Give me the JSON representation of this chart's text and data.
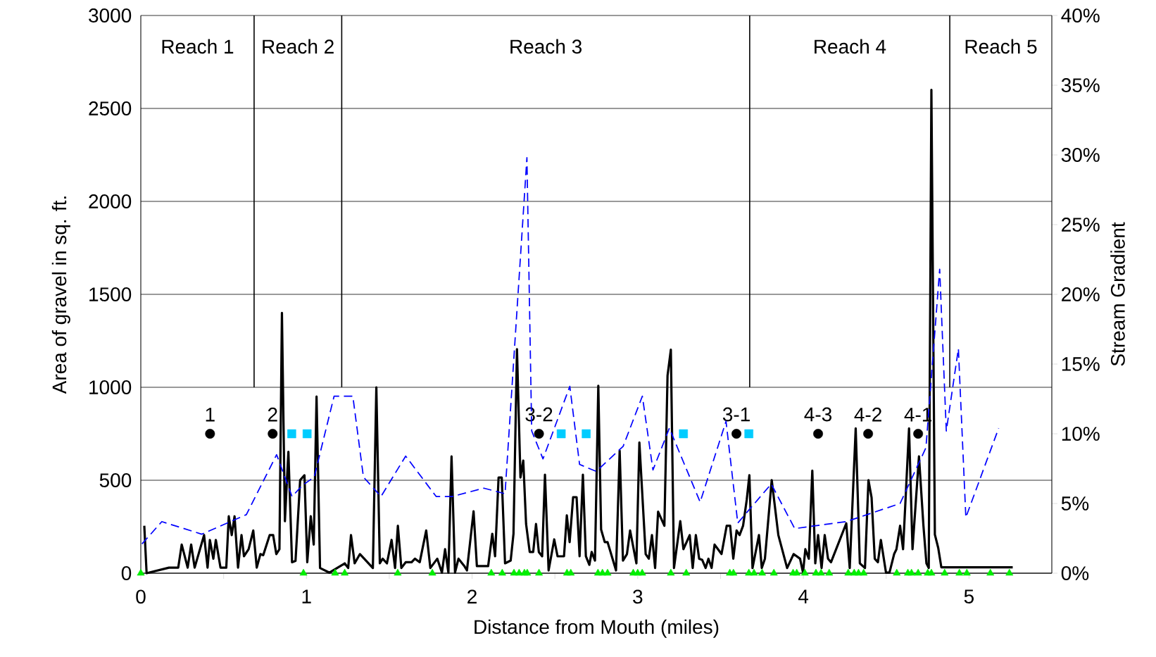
{
  "chart_data": {
    "type": "line",
    "xlabel": "Distance from Mouth (miles)",
    "ylabel": "Area of gravel in sq. ft.",
    "y2label": "Stream Gradient",
    "xlim": [
      0,
      5.5
    ],
    "xticks": [
      0,
      {
        "value": 0.5,
        "label": null
      },
      1,
      {
        "value": 1.5,
        "label": null
      },
      2,
      {
        "value": 2.5,
        "label": null
      },
      3,
      {
        "value": 3.5,
        "label": null
      },
      4,
      {
        "value": 4.5,
        "label": null
      },
      5
    ],
    "ylim": [
      0,
      3000
    ],
    "yticks": [
      0,
      500,
      1000,
      1500,
      2000,
      2500,
      3000
    ],
    "y2lim": [
      0,
      40
    ],
    "y2ticks": [
      {
        "value": 0,
        "label": "0%"
      },
      {
        "value": 5,
        "label": "5%"
      },
      {
        "value": 10,
        "label": "10%"
      },
      {
        "value": 15,
        "label": "15%"
      },
      {
        "value": 20,
        "label": "20%"
      },
      {
        "value": 25,
        "label": "25%"
      },
      {
        "value": 30,
        "label": "30%"
      },
      {
        "value": 35,
        "label": "35%"
      },
      {
        "value": 40,
        "label": "40%"
      }
    ],
    "grid": "y",
    "series": [
      {
        "color": "#000000",
        "x": [
          0.021,
          0.035,
          0.17,
          0.226,
          0.247,
          0.283,
          0.304,
          0.325,
          0.382,
          0.403,
          0.417,
          0.438,
          0.453,
          0.481,
          0.516,
          0.531,
          0.549,
          0.566,
          0.587,
          0.608,
          0.623,
          0.651,
          0.679,
          0.7,
          0.722,
          0.739,
          0.778,
          0.799,
          0.818,
          0.837,
          0.852,
          0.87,
          0.891,
          0.913,
          0.934,
          0.962,
          0.988,
          1.005,
          1.026,
          1.044,
          1.061,
          1.082,
          1.139,
          1.231,
          1.252,
          1.269,
          1.291,
          1.323,
          1.401,
          1.422,
          1.443,
          1.46,
          1.486,
          1.514,
          1.535,
          1.552,
          1.573,
          1.599,
          1.635,
          1.655,
          1.684,
          1.723,
          1.748,
          1.79,
          1.818,
          1.837,
          1.857,
          1.876,
          1.897,
          1.918,
          1.952,
          1.969,
          2.009,
          2.029,
          2.097,
          2.122,
          2.139,
          2.16,
          2.179,
          2.199,
          2.233,
          2.25,
          2.271,
          2.292,
          2.309,
          2.326,
          2.348,
          2.369,
          2.386,
          2.403,
          2.423,
          2.44,
          2.462,
          2.496,
          2.516,
          2.555,
          2.572,
          2.589,
          2.61,
          2.631,
          2.649,
          2.669,
          2.687,
          2.708,
          2.722,
          2.742,
          2.762,
          2.779,
          2.801,
          2.818,
          2.869,
          2.891,
          2.911,
          2.935,
          2.954,
          2.992,
          3.01,
          3.048,
          3.067,
          3.086,
          3.105,
          3.123,
          3.161,
          3.18,
          3.2,
          3.219,
          3.257,
          3.276,
          3.314,
          3.332,
          3.351,
          3.371,
          3.389,
          3.41,
          3.427,
          3.446,
          3.464,
          3.506,
          3.537,
          3.558,
          3.577,
          3.597,
          3.615,
          3.636,
          3.658,
          3.674,
          3.693,
          3.732,
          3.749,
          3.768,
          3.809,
          3.849,
          3.902,
          3.941,
          3.98,
          3.998,
          4.012,
          4.033,
          4.054,
          4.072,
          4.089,
          4.11,
          4.129,
          4.149,
          4.167,
          4.259,
          4.28,
          4.316,
          4.341,
          4.372,
          4.393,
          4.412,
          4.431,
          4.45,
          4.468,
          4.499,
          4.52,
          4.548,
          4.562,
          4.584,
          4.602,
          4.619,
          4.638,
          4.659,
          4.698,
          4.725,
          4.743,
          4.757,
          4.773,
          4.794,
          4.814,
          4.833,
          5.264
        ],
        "values": [
          255,
          0,
          30,
          30,
          154,
          30,
          154,
          30,
          205,
          30,
          179,
          78,
          179,
          30,
          30,
          306,
          205,
          306,
          30,
          205,
          91,
          129,
          230,
          30,
          103,
          97,
          205,
          205,
          103,
          129,
          1400,
          280,
          653,
          59,
          66,
          501,
          527,
          59,
          306,
          154,
          950,
          28,
          3,
          53,
          28,
          205,
          53,
          103,
          28,
          1000,
          53,
          78,
          53,
          179,
          28,
          255,
          28,
          59,
          59,
          78,
          59,
          230,
          28,
          78,
          3,
          129,
          3,
          628,
          3,
          78,
          40,
          15,
          333,
          38,
          38,
          212,
          91,
          515,
          515,
          53,
          68,
          212,
          1205,
          515,
          606,
          265,
          114,
          114,
          265,
          114,
          91,
          530,
          15,
          182,
          91,
          91,
          311,
          167,
          409,
          409,
          91,
          530,
          91,
          45,
          114,
          68,
          1008,
          235,
          167,
          167,
          15,
          659,
          68,
          103,
          230,
          53,
          703,
          103,
          78,
          205,
          28,
          331,
          255,
          1063,
          1202,
          28,
          280,
          129,
          205,
          28,
          205,
          78,
          72,
          28,
          78,
          28,
          154,
          103,
          255,
          255,
          78,
          230,
          205,
          255,
          394,
          527,
          28,
          205,
          28,
          78,
          501,
          205,
          28,
          103,
          78,
          3,
          129,
          78,
          552,
          53,
          205,
          28,
          205,
          78,
          59,
          268,
          28,
          779,
          53,
          28,
          501,
          406,
          78,
          59,
          179,
          3,
          3,
          103,
          129,
          255,
          129,
          432,
          779,
          129,
          628,
          255,
          53,
          28,
          2600,
          208,
          137,
          32,
          32
        ]
      },
      {
        "color": "#0000ff",
        "axis": "y2",
        "line_style": "dashed",
        "x": [
          0.007,
          0.127,
          0.368,
          0.637,
          0.82,
          0.913,
          0.976,
          1.047,
          1.167,
          1.28,
          1.344,
          1.45,
          1.599,
          1.783,
          1.88,
          2.071,
          2.199,
          2.331,
          2.36,
          2.428,
          2.59,
          2.649,
          2.75,
          2.912,
          3.028,
          3.092,
          3.191,
          3.377,
          3.533,
          3.604,
          3.806,
          3.948,
          4.259,
          4.584,
          4.74,
          4.823,
          4.863,
          4.936,
          4.981,
          5.179
        ],
        "values": [
          2.1,
          3.7,
          2.8,
          4.2,
          8.5,
          5.5,
          6.3,
          6.9,
          12.7,
          12.7,
          6.9,
          5.5,
          8.4,
          5.5,
          5.5,
          6.1,
          5.7,
          29.8,
          10.2,
          8.2,
          13.4,
          7.8,
          7.3,
          9.1,
          12.7,
          7.4,
          10.4,
          5.1,
          10.9,
          3.6,
          6.4,
          3.2,
          3.7,
          5.0,
          9.0,
          21.8,
          10.2,
          16.1,
          4.0,
          10.4
        ]
      },
      {
        "type": "scatter",
        "marker": "circle",
        "color": "#000000",
        "x": [
          0.418,
          0.796,
          2.404,
          3.596,
          4.089,
          4.391,
          4.693
        ],
        "values": [
          750,
          750,
          750,
          750,
          750,
          750,
          750
        ]
      },
      {
        "type": "scatter",
        "marker": "square",
        "color": "#00ccff",
        "x": [
          0.911,
          1.004,
          2.538,
          2.689,
          3.276,
          3.671
        ],
        "values": [
          750,
          750,
          750,
          750,
          750,
          750
        ]
      },
      {
        "type": "scatter",
        "marker": "triangle",
        "color": "#00ee00",
        "x": [
          0,
          0.982,
          1.173,
          1.231,
          1.551,
          1.76,
          2.116,
          2.182,
          2.253,
          2.284,
          2.316,
          2.333,
          2.404,
          2.573,
          2.596,
          2.76,
          2.787,
          2.818,
          2.973,
          3.0,
          3.027,
          3.2,
          3.293,
          3.556,
          3.578,
          3.671,
          3.702,
          3.751,
          3.822,
          3.938,
          3.96,
          4.009,
          4.076,
          4.107,
          4.156,
          4.271,
          4.307,
          4.333,
          4.364,
          4.564,
          4.631,
          4.653,
          4.693,
          4.751,
          4.773,
          4.853,
          4.942,
          4.987,
          5.129,
          5.244
        ],
        "values": [
          0,
          0,
          0,
          0,
          0,
          0,
          0,
          0,
          0,
          0,
          0,
          0,
          0,
          0,
          0,
          0,
          0,
          0,
          0,
          0,
          0,
          0,
          0,
          0,
          0,
          0,
          0,
          0,
          0,
          0,
          0,
          0,
          0,
          0,
          0,
          0,
          0,
          0,
          0,
          0,
          0,
          0,
          0,
          0,
          0,
          0,
          0,
          0,
          0,
          0
        ]
      },
      {
        "type": "line",
        "color": "#000000",
        "x": [
          0.684,
          0.684
        ],
        "values": [
          1000,
          3000
        ]
      },
      {
        "type": "line",
        "color": "#000000",
        "x": [
          1.213,
          1.213
        ],
        "values": [
          1000,
          3000
        ]
      },
      {
        "type": "line",
        "color": "#000000",
        "x": [
          3.676,
          3.676
        ],
        "values": [
          1000,
          3000
        ]
      },
      {
        "type": "line",
        "color": "#000000",
        "x": [
          4.884,
          4.884
        ],
        "values": [
          1000,
          3000
        ]
      }
    ],
    "annotations": [
      "Reach 1",
      "Reach 2",
      "Reach 3",
      "Reach 4",
      "Reach 5",
      {
        "text": "1",
        "x": 0.418,
        "y": 750
      },
      {
        "text": "2",
        "x": 0.796,
        "y": 750
      },
      {
        "text": "3-2",
        "x": 2.404,
        "y": 750
      },
      {
        "text": "3-1",
        "x": 3.596,
        "y": 750
      },
      {
        "text": "4-3",
        "x": 4.089,
        "y": 750
      },
      {
        "text": "4-2",
        "x": 4.391,
        "y": 750
      },
      {
        "text": "4-1",
        "x": 4.693,
        "y": 750
      }
    ]
  }
}
